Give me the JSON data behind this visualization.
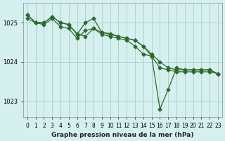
{
  "hours": [
    0,
    1,
    2,
    3,
    4,
    5,
    6,
    7,
    8,
    9,
    10,
    11,
    12,
    13,
    14,
    15,
    16,
    17,
    18,
    19,
    20,
    21,
    22,
    23
  ],
  "line1": [
    1025.1,
    1025.0,
    1024.95,
    1025.1,
    1024.9,
    1024.85,
    1024.6,
    1024.8,
    1024.85,
    1024.7,
    1024.65,
    1024.6,
    1024.55,
    1024.4,
    1024.2,
    1024.15,
    1023.85,
    1023.8,
    1023.75,
    1023.75,
    1023.75,
    1023.75,
    1023.75,
    1023.7
  ],
  "line2": [
    1025.2,
    1025.0,
    1025.0,
    1025.15,
    1025.0,
    1024.95,
    1024.7,
    1025.0,
    1025.1,
    1024.75,
    1024.7,
    1024.65,
    1024.6,
    1024.55,
    1024.4,
    1024.15,
    1022.8,
    1023.3,
    1023.85,
    1023.8,
    1023.8,
    1023.8,
    1023.8,
    1023.7
  ],
  "line3": [
    1025.2,
    1025.0,
    1025.0,
    1025.15,
    1025.0,
    1024.95,
    1024.72,
    1024.65,
    1024.85,
    1024.75,
    1024.72,
    1024.65,
    1024.6,
    1024.55,
    1024.4,
    1024.2,
    1024.0,
    1023.85,
    1023.8,
    1023.8,
    1023.8,
    1023.8,
    1023.8,
    1023.7
  ],
  "bg_color": "#d6f0f0",
  "line_color": "#2d6a2d",
  "grid_color": "#aacccc",
  "xlabel": "Graphe pression niveau de la mer (hPa)",
  "ylim": [
    1022.6,
    1025.5
  ],
  "yticks": [
    1023,
    1024,
    1025
  ],
  "xlim": [
    -0.5,
    23.5
  ]
}
